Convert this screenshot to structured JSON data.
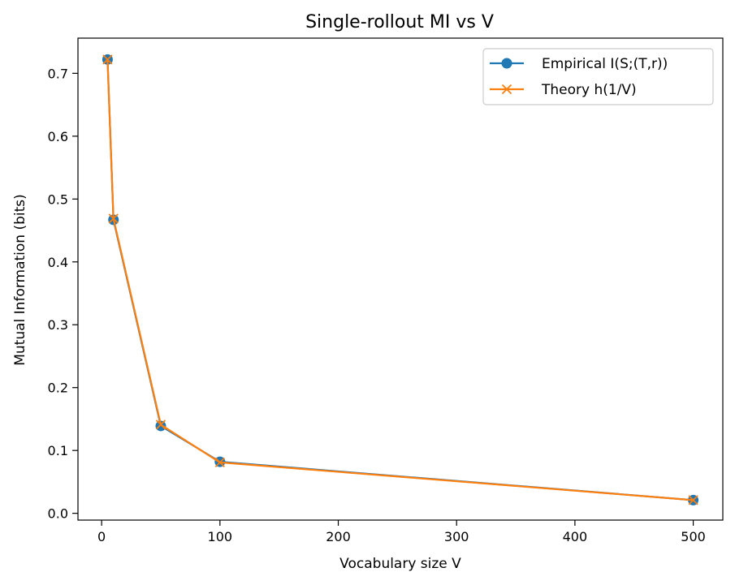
{
  "chart_data": {
    "type": "line",
    "title": "Single-rollout MI vs V",
    "xlabel": "Vocabulary size V",
    "ylabel": "Mutual Information (bits)",
    "xlim": [
      -20,
      525
    ],
    "ylim": [
      -0.0108,
      0.756
    ],
    "xticks": [
      0,
      100,
      200,
      300,
      400,
      500
    ],
    "xtick_labels": [
      "0",
      "100",
      "200",
      "300",
      "400",
      "500"
    ],
    "yticks": [
      0.0,
      0.1,
      0.2,
      0.3,
      0.4,
      0.5,
      0.6,
      0.7
    ],
    "ytick_labels": [
      "0.0",
      "0.1",
      "0.2",
      "0.3",
      "0.4",
      "0.5",
      "0.6",
      "0.7"
    ],
    "grid": false,
    "legend_position": "top-right",
    "x": [
      5,
      10,
      50,
      100,
      500
    ],
    "series": [
      {
        "name": "Empirical I(S;(T,r))",
        "marker": "circle",
        "color": "#1f77b4",
        "values": [
          0.722,
          0.467,
          0.139,
          0.082,
          0.021
        ]
      },
      {
        "name": "Theory h(1/V)",
        "marker": "x",
        "color": "#ff7f0e",
        "values": [
          0.722,
          0.469,
          0.141,
          0.081,
          0.021
        ]
      }
    ]
  }
}
